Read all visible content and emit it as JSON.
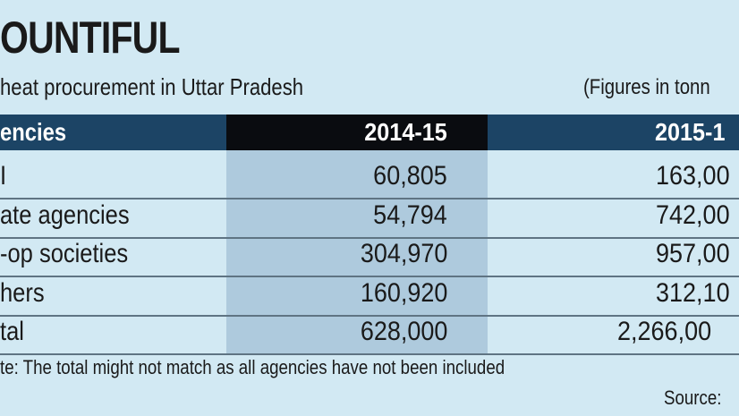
{
  "title": "OUNTIFUL",
  "subtitle": "heat procurement in Uttar Pradesh",
  "units_note": "(Figures in tonn",
  "chart_data": {
    "type": "table",
    "columns": [
      "encies",
      "2014-15",
      "2015-1"
    ],
    "rows": [
      [
        "I",
        "60,805",
        "163,00"
      ],
      [
        "ate agencies",
        "54,794",
        "742,00"
      ],
      [
        "-op societies",
        "304,970",
        "957,00"
      ],
      [
        "hers",
        "160,920",
        "312,10"
      ],
      [
        "tal",
        "628,000",
        "2,266,00"
      ]
    ],
    "highlight_column": "2014-15",
    "colors": {
      "background": "#d2e9f3",
      "header": "#1c4465",
      "header_highlight": "#0a0c10",
      "column_highlight": "#aecadd"
    }
  },
  "note": "te: The total might not match as all agencies have not been included",
  "source": "Source:"
}
